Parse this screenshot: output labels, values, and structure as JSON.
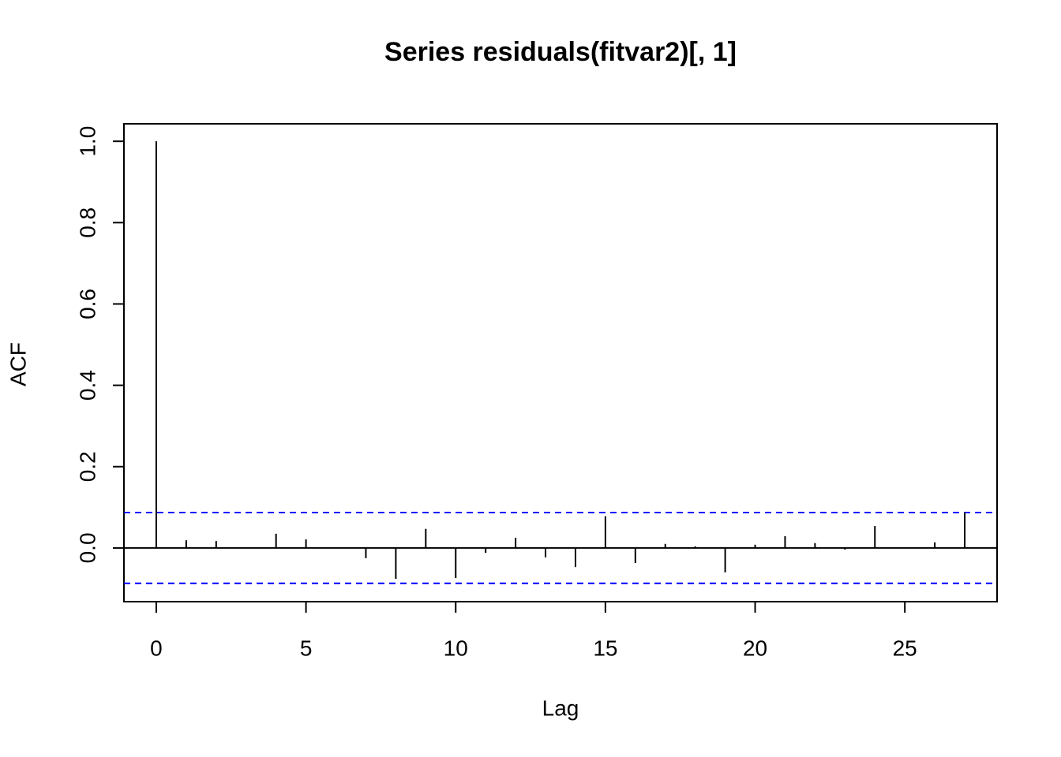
{
  "chart_data": {
    "type": "acf",
    "title": "Series  residuals(fitvar2)[, 1]",
    "x_label": "Lag",
    "y_label": "ACF",
    "x": [
      0,
      1,
      2,
      3,
      4,
      5,
      6,
      7,
      8,
      9,
      10,
      11,
      12,
      13,
      14,
      15,
      16,
      17,
      18,
      19,
      20,
      21,
      22,
      23,
      24,
      25,
      26,
      27
    ],
    "values": [
      1.0,
      0.019,
      0.017,
      0.001,
      0.035,
      0.021,
      0.002,
      -0.025,
      -0.076,
      0.047,
      -0.074,
      -0.012,
      0.025,
      -0.023,
      -0.047,
      0.078,
      -0.037,
      0.01,
      0.004,
      -0.06,
      0.008,
      0.029,
      0.012,
      -0.004,
      0.054,
      0.001,
      0.014,
      0.087
    ],
    "color": "#000000",
    "ci": [
      0.087,
      -0.087
    ],
    "ci_color": "#0000ff",
    "xlim": [
      -1.08,
      28.08
    ],
    "ylim": [
      -0.132,
      1.043
    ],
    "xticks": [
      0,
      5,
      10,
      15,
      20,
      25
    ],
    "yticks": [
      {
        "value": 0,
        "label": "0.0"
      },
      0.2,
      0.4,
      0.6,
      0.8,
      {
        "value": 1,
        "label": "1.0"
      }
    ]
  }
}
